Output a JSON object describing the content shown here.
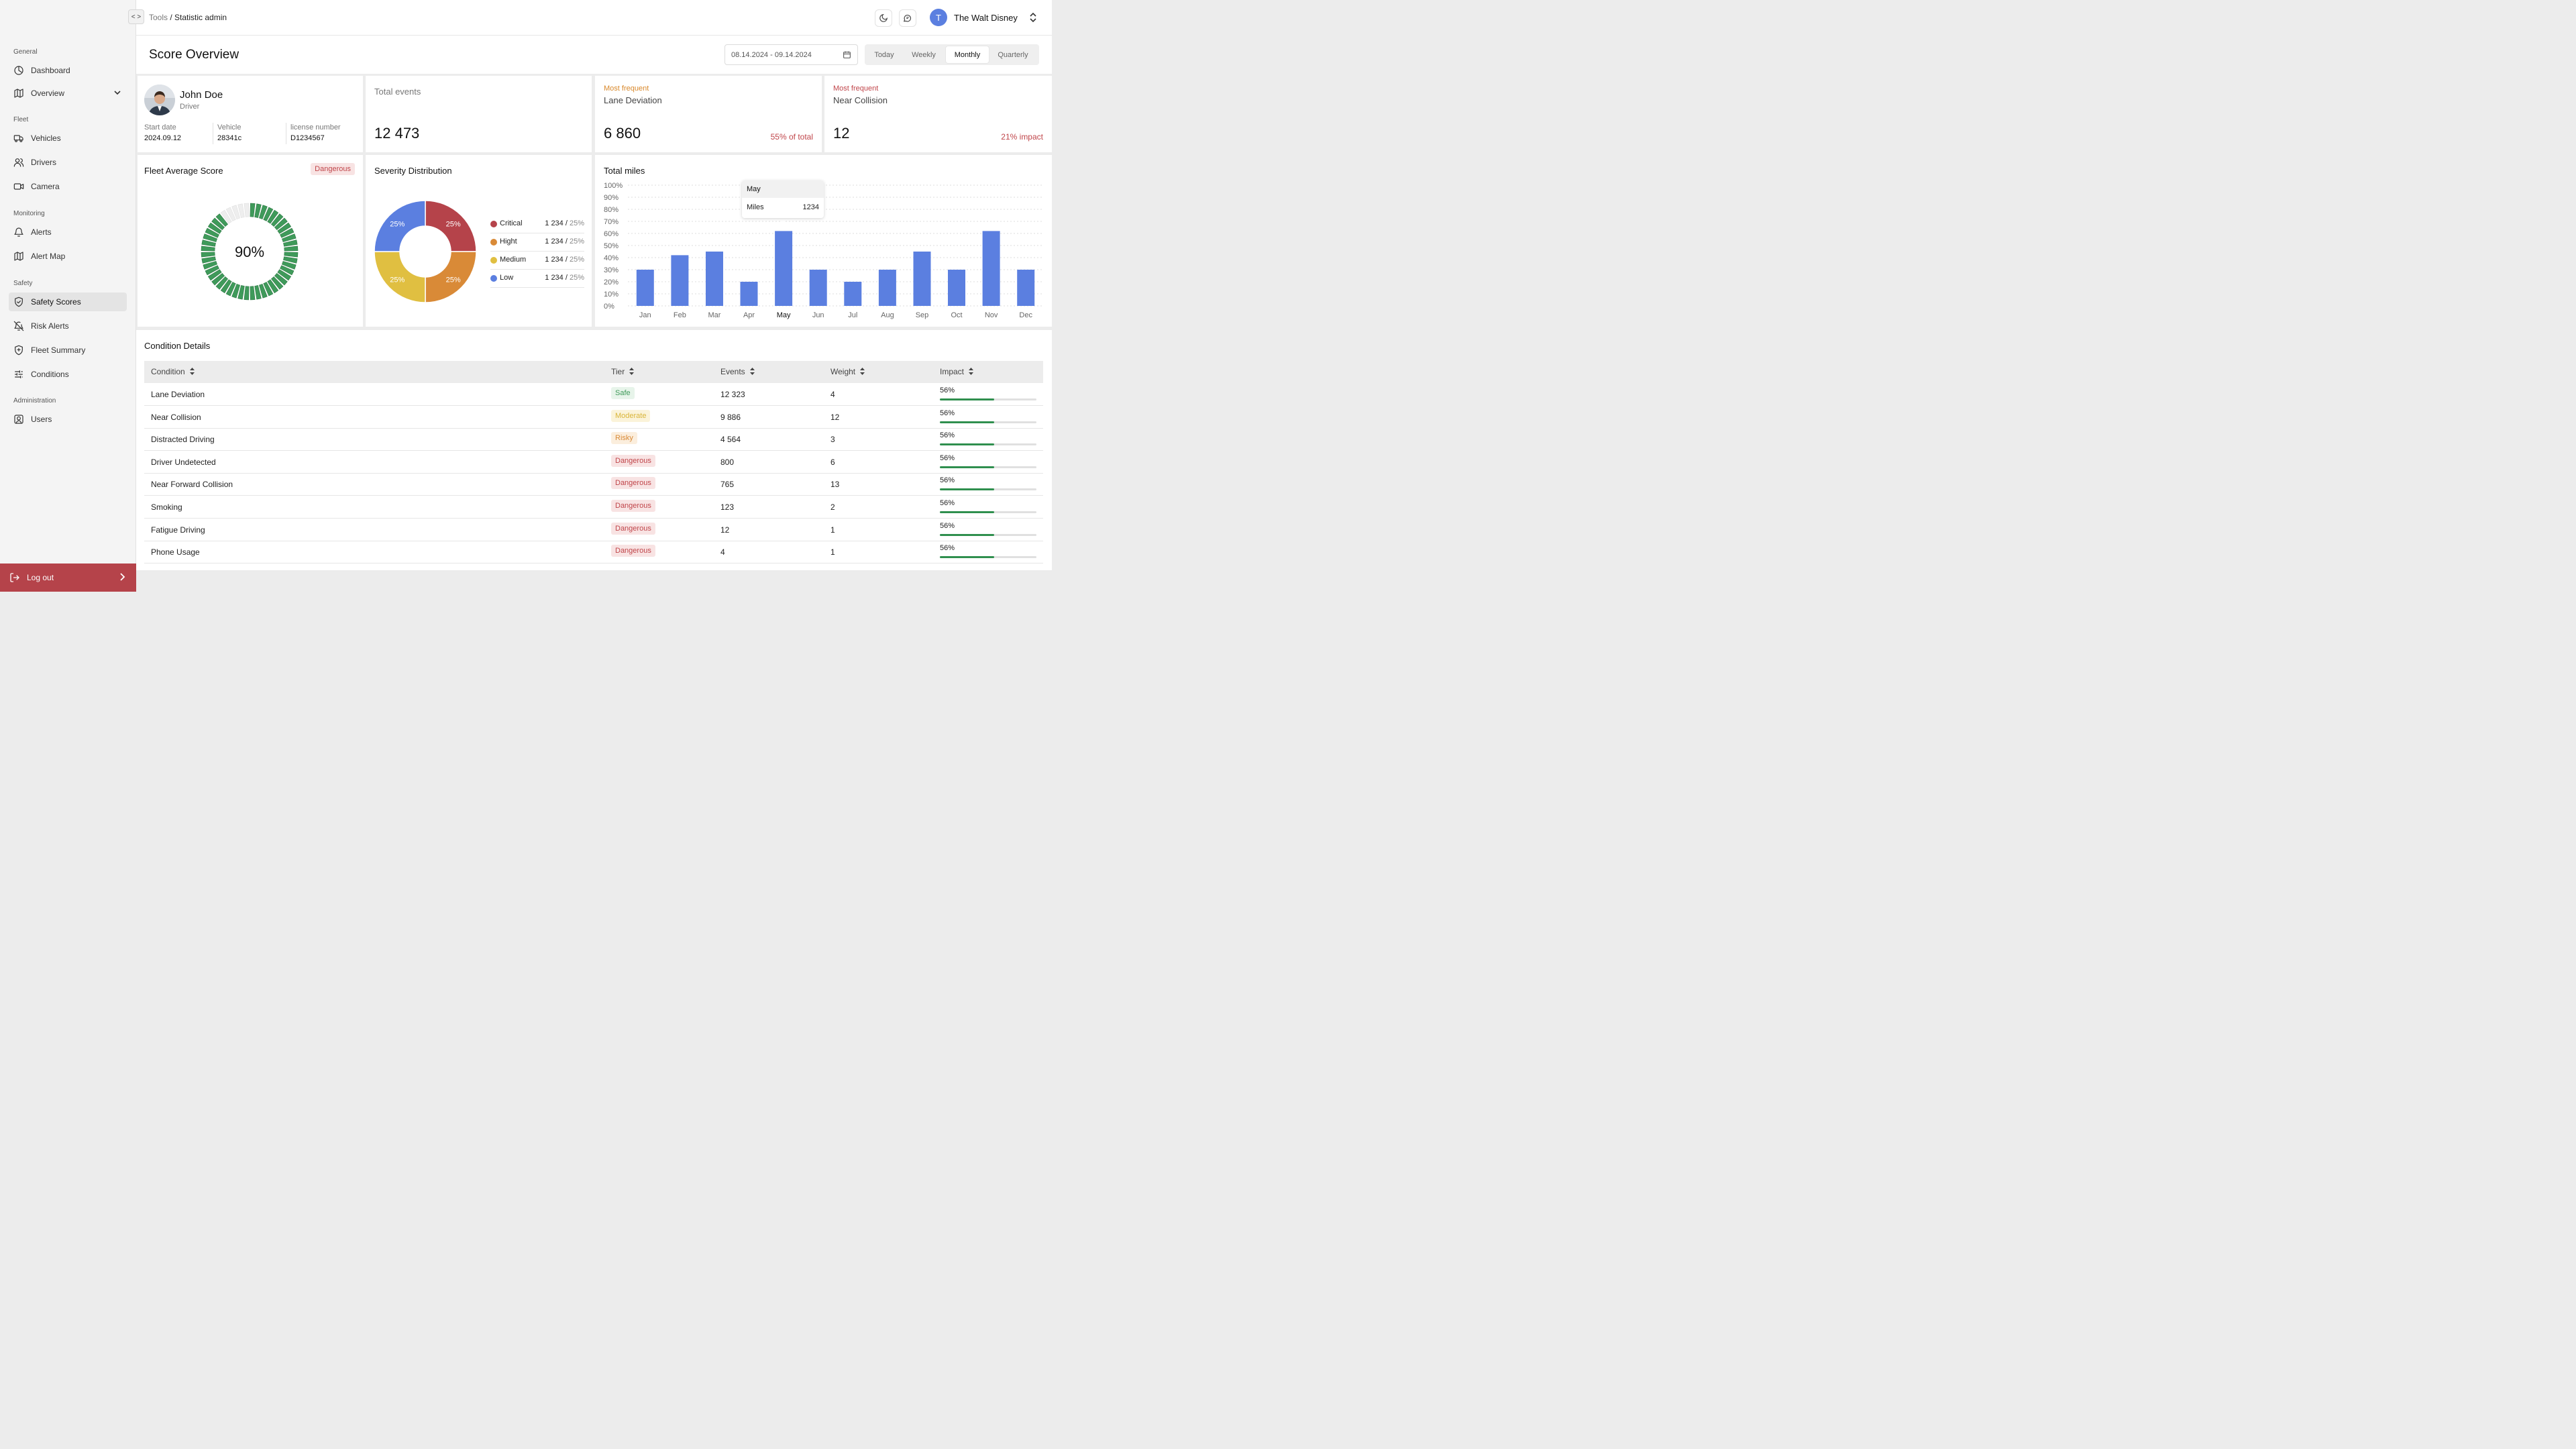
{
  "app": {
    "breadcrumb_parent": "Tools",
    "breadcrumb_sep": " / ",
    "breadcrumb_current": "Statistic admin",
    "org_initial": "T",
    "org_name": "The Walt Disney"
  },
  "sidebar": {
    "sections": [
      {
        "label": "General",
        "items": [
          {
            "label": "Dashboard",
            "icon": "dashboard-icon"
          },
          {
            "label": "Overview",
            "icon": "map-icon",
            "expandable": true
          }
        ]
      },
      {
        "label": "Fleet",
        "items": [
          {
            "label": "Vehicles",
            "icon": "truck-icon"
          },
          {
            "label": "Drivers",
            "icon": "users-icon"
          },
          {
            "label": "Camera",
            "icon": "camera-icon"
          }
        ]
      },
      {
        "label": "Monitoring",
        "items": [
          {
            "label": "Alerts",
            "icon": "bell-icon"
          },
          {
            "label": "Alert Map",
            "icon": "map-icon"
          }
        ]
      },
      {
        "label": "Safety",
        "items": [
          {
            "label": "Safety Scores",
            "icon": "shield-check-icon",
            "active": true
          },
          {
            "label": "Risk Alerts",
            "icon": "bell-off-icon"
          },
          {
            "label": "Fleet Summary",
            "icon": "shield-plus-icon"
          },
          {
            "label": "Conditions",
            "icon": "sliders-icon"
          }
        ]
      },
      {
        "label": "Administration",
        "items": [
          {
            "label": "Users",
            "icon": "user-square-icon"
          }
        ]
      }
    ],
    "logout_label": "Log out"
  },
  "header": {
    "title": "Score Overview",
    "date_range": "08.14.2024 - 09.14.2024",
    "periods": [
      {
        "label": "Today"
      },
      {
        "label": "Weekly"
      },
      {
        "label": "Monthly",
        "active": true
      },
      {
        "label": "Quarterly"
      }
    ]
  },
  "driver": {
    "name": "John Doe",
    "role": "Driver",
    "fields": [
      {
        "label": "Start date",
        "value": "2024.09.12"
      },
      {
        "label": "Vehicle",
        "value": "28341c"
      },
      {
        "label": "license number",
        "value": "D1234567"
      }
    ]
  },
  "stats": {
    "total_events": {
      "label": "Total events",
      "value": "12 473"
    },
    "lane": {
      "caption": "Most frequent",
      "label": "Lane Deviation",
      "value": "6 860",
      "note": "55% of total",
      "caption_color": "#d9882a",
      "note_color": "#c0454a"
    },
    "collision": {
      "caption": "Most frequent",
      "label": "Near Collision",
      "value": "12",
      "note": "21% impact",
      "caption_color": "#c0454a",
      "note_color": "#c0454a"
    }
  },
  "fleet_score": {
    "title": "Fleet Average Score",
    "badge": "Dangerous",
    "value_text": "90%",
    "fraction": 0.9
  },
  "severity": {
    "title": "Severity Distribution",
    "items": [
      {
        "name": "Critical",
        "value": "1 234",
        "sep": " / ",
        "pct": "25%",
        "color": "#b5434a"
      },
      {
        "name": "Hight",
        "value": "1 234",
        "sep": " / ",
        "pct": "25%",
        "color": "#d98a37"
      },
      {
        "name": "Medium",
        "value": "1 234",
        "sep": " / ",
        "pct": "25%",
        "color": "#e0bf41"
      },
      {
        "name": "Low",
        "value": "1 234",
        "sep": " / ",
        "pct": "25%",
        "color": "#5b7fe0"
      }
    ]
  },
  "chart_data": {
    "type": "bar",
    "title": "Total miles",
    "categories": [
      "Jan",
      "Feb",
      "Mar",
      "Apr",
      "May",
      "Jun",
      "Jul",
      "Aug",
      "Sep",
      "Oct",
      "Nov",
      "Dec"
    ],
    "values": [
      30,
      42,
      45,
      20,
      62,
      30,
      20,
      30,
      45,
      30,
      62,
      30
    ],
    "yticks": [
      "0%",
      "10%",
      "20%",
      "30%",
      "40%",
      "50%",
      "60%",
      "70%",
      "80%",
      "90%",
      "100%"
    ],
    "ylim": [
      0,
      100
    ],
    "grid": true,
    "bar_color": "#5b7fe0",
    "tooltip": {
      "category": "May",
      "label": "Miles",
      "value": "1234"
    }
  },
  "conditions": {
    "title": "Condition Details",
    "columns": [
      "Condition",
      "Tier",
      "Events",
      "Weight",
      "Impact"
    ],
    "rows": [
      {
        "condition": "Lane Deviation",
        "tier": "Safe",
        "events": "12 323",
        "weight": "4",
        "impact": "56%"
      },
      {
        "condition": "Near Collision",
        "tier": "Moderate",
        "events": "9 886",
        "weight": "12",
        "impact": "56%"
      },
      {
        "condition": "Distracted Driving",
        "tier": "Risky",
        "events": "4 564",
        "weight": "3",
        "impact": "56%"
      },
      {
        "condition": "Driver Undetected",
        "tier": "Dangerous",
        "events": "800",
        "weight": "6",
        "impact": "56%"
      },
      {
        "condition": "Near Forward Collision",
        "tier": "Dangerous",
        "events": "765",
        "weight": "13",
        "impact": "56%"
      },
      {
        "condition": "Smoking",
        "tier": "Dangerous",
        "events": "123",
        "weight": "2",
        "impact": "56%"
      },
      {
        "condition": "Fatigue Driving",
        "tier": "Dangerous",
        "events": "12",
        "weight": "1",
        "impact": "56%"
      },
      {
        "condition": "Phone Usage",
        "tier": "Dangerous",
        "events": "4",
        "weight": "1",
        "impact": "56%"
      }
    ],
    "tier_colors": {
      "Safe": {
        "fg": "#3f9a5a",
        "bg": "#e7f4ea"
      },
      "Moderate": {
        "fg": "#d9b53a",
        "bg": "#fbf3d9"
      },
      "Risky": {
        "fg": "#d98a37",
        "bg": "#fbeedd"
      },
      "Dangerous": {
        "fg": "#c0454a",
        "bg": "#f8e3e3"
      }
    }
  }
}
